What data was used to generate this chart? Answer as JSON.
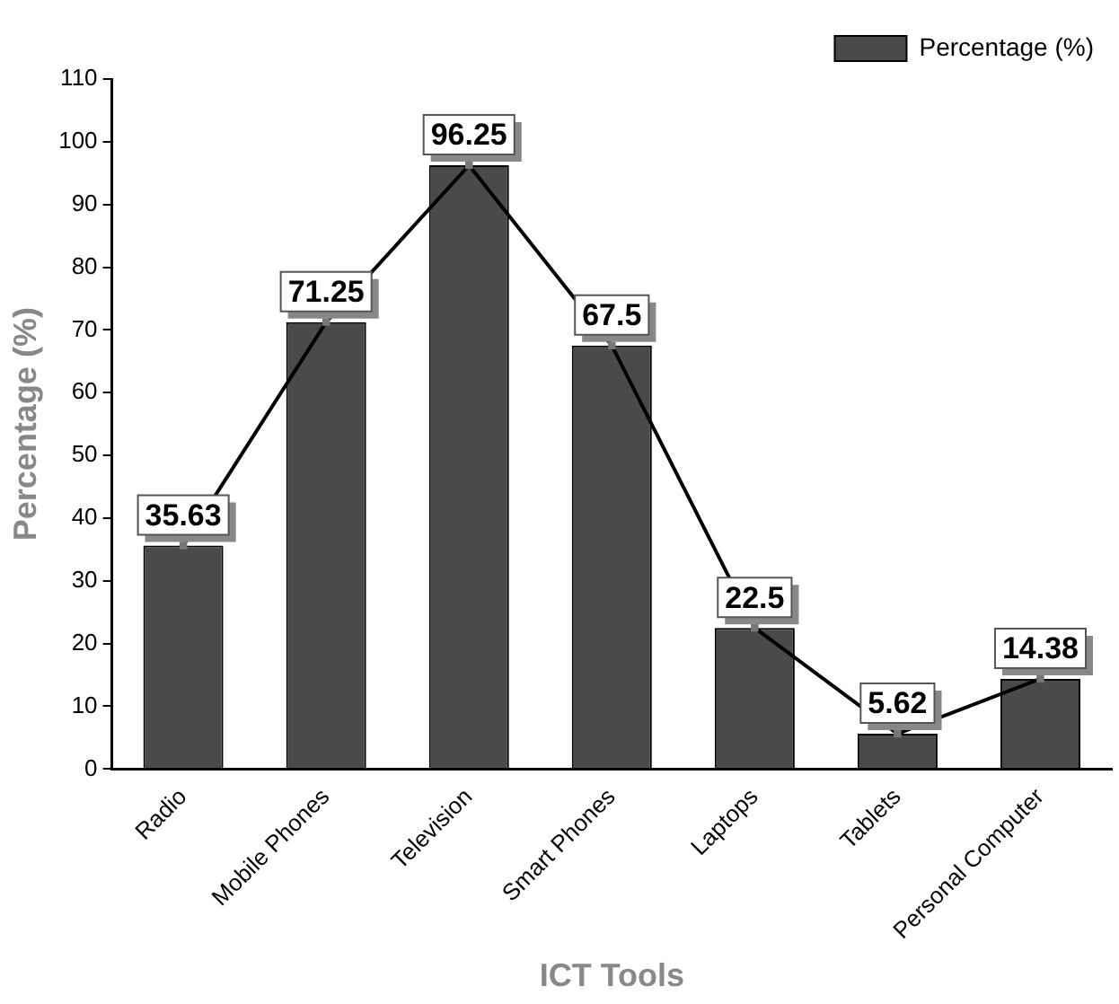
{
  "chart_data": {
    "type": "bar",
    "xlabel": "ICT Tools",
    "ylabel": "Percentage (%)",
    "categories": [
      "Radio",
      "Mobile Phones",
      "Television",
      "Smart Phones",
      "Laptops",
      "Tablets",
      "Personal Computer"
    ],
    "series": [
      {
        "name": "Percentage (%)",
        "color": "#4a4a4a",
        "values": [
          35.63,
          71.25,
          96.25,
          67.5,
          22.5,
          5.62,
          14.38
        ],
        "value_labels": [
          "35.63",
          "71.25",
          "96.25",
          "67.5",
          "22.5",
          "5.62",
          "14.38"
        ]
      },
      {
        "type": "line",
        "color": "#000000",
        "values": [
          35.63,
          71.25,
          96.25,
          67.5,
          22.5,
          5.62,
          14.38
        ]
      }
    ],
    "ylim": [
      0,
      110
    ],
    "yticks": [
      0,
      10,
      20,
      30,
      40,
      50,
      60,
      70,
      80,
      90,
      100,
      110
    ],
    "grid": false,
    "legend": "top right",
    "marker": "square"
  }
}
